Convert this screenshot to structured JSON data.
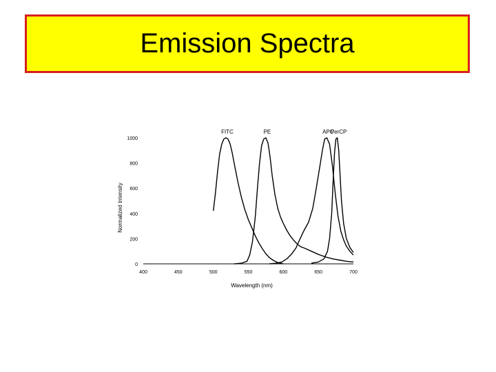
{
  "slide": {
    "title": "Emission Spectra",
    "title_bg": "#ffff00",
    "title_border": "#d81e1e"
  },
  "chart_data": {
    "type": "line",
    "title": "",
    "xlabel": "Wavelength (nm)",
    "ylabel": "Normalized Intensity",
    "xlim": [
      400,
      700
    ],
    "ylim": [
      0,
      1000
    ],
    "xticks": [
      400,
      450,
      500,
      550,
      600,
      650,
      700
    ],
    "yticks": [
      0,
      200,
      400,
      600,
      800,
      1000
    ],
    "grid": false,
    "series": [
      {
        "name": "FITC",
        "x": [
          500,
          503,
          506,
          509,
          512,
          515,
          518,
          521,
          524,
          527,
          530,
          535,
          540,
          545,
          550,
          555,
          560,
          565,
          570,
          575,
          580,
          585,
          590,
          595,
          600
        ],
        "y": [
          420,
          560,
          730,
          870,
          950,
          990,
          1000,
          990,
          950,
          880,
          790,
          650,
          530,
          430,
          350,
          285,
          220,
          165,
          120,
          80,
          50,
          30,
          15,
          5,
          0
        ]
      },
      {
        "name": "PE",
        "x": [
          530,
          540,
          548,
          552,
          556,
          560,
          563,
          566,
          569,
          572,
          575,
          578,
          581,
          584,
          588,
          592,
          596,
          600,
          605,
          610,
          615,
          620,
          625,
          630,
          640,
          650,
          660,
          670,
          680,
          690,
          700
        ],
        "y": [
          0,
          5,
          20,
          70,
          180,
          380,
          600,
          800,
          940,
          990,
          1000,
          960,
          850,
          700,
          550,
          440,
          370,
          320,
          265,
          220,
          185,
          155,
          135,
          125,
          100,
          75,
          55,
          40,
          30,
          20,
          15
        ]
      },
      {
        "name": "APC",
        "x": [
          580,
          590,
          598,
          605,
          612,
          618,
          624,
          630,
          636,
          642,
          647,
          652,
          656,
          659,
          662,
          666,
          670,
          674,
          678,
          682,
          686,
          690,
          695,
          700
        ],
        "y": [
          0,
          5,
          15,
          40,
          80,
          125,
          200,
          270,
          330,
          440,
          600,
          770,
          910,
          990,
          1000,
          950,
          780,
          560,
          380,
          260,
          190,
          140,
          100,
          70
        ]
      },
      {
        "name": "PerCP",
        "x": [
          640,
          650,
          658,
          663,
          666,
          669,
          671,
          673,
          675,
          677,
          679,
          681,
          683,
          686,
          690,
          695,
          700
        ],
        "y": [
          5,
          15,
          40,
          100,
          200,
          400,
          650,
          880,
          990,
          1000,
          900,
          700,
          500,
          320,
          200,
          130,
          90
        ]
      }
    ]
  }
}
